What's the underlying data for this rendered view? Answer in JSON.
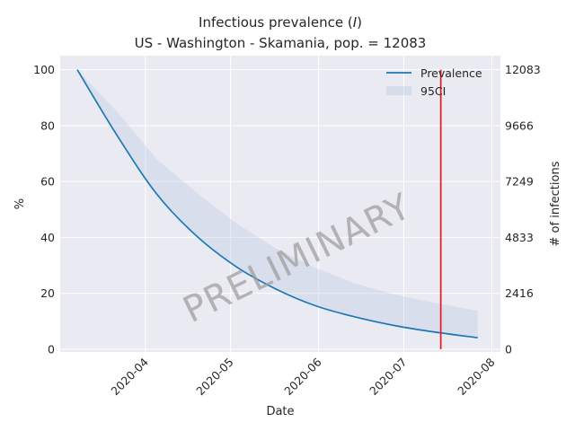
{
  "chart_data": {
    "type": "line",
    "title_line1": "Infectious prevalence (",
    "title_symbol": "I",
    "title_line1_end": ")",
    "title_line2": "US - Washington - Skamania, pop. = 12083",
    "xlabel": "Date",
    "ylabel_left": "%",
    "ylabel_right": "# of infections",
    "x_range": [
      "2020-03-02",
      "2020-08-04"
    ],
    "x_ticks": [
      "2020-04",
      "2020-05",
      "2020-06",
      "2020-07",
      "2020-08"
    ],
    "x_tick_dates": [
      "2020-04-01",
      "2020-05-01",
      "2020-06-01",
      "2020-07-01",
      "2020-08-01"
    ],
    "ylim_left": [
      -1,
      105
    ],
    "y_ticks_left": [
      "0",
      "20",
      "40",
      "60",
      "80",
      "100"
    ],
    "y_ticks_left_values": [
      0,
      20,
      40,
      60,
      80,
      100
    ],
    "ylim_right_total": 12083,
    "y_ticks_right": [
      "0",
      "2416",
      "4833",
      "7249",
      "9666",
      "12083"
    ],
    "y_ticks_right_values": [
      0,
      2416,
      4833,
      7249,
      9666,
      12083
    ],
    "series": [
      {
        "name": "Prevalence",
        "color": "#1f77b4",
        "x": [
          "2020-03-08",
          "2020-03-22",
          "2020-04-05",
          "2020-04-19",
          "2020-05-03",
          "2020-05-17",
          "2020-05-31",
          "2020-06-14",
          "2020-06-28",
          "2020-07-12",
          "2020-07-27"
        ],
        "values": [
          100,
          76.5,
          55.5,
          40.5,
          29.5,
          21.5,
          15.5,
          11.5,
          8.4,
          6.1,
          4.1
        ]
      }
    ],
    "ci_band": {
      "name": "95CI",
      "color": "#b0c4de",
      "x": [
        "2020-03-08",
        "2020-03-22",
        "2020-04-05",
        "2020-04-19",
        "2020-05-03",
        "2020-05-17",
        "2020-05-31",
        "2020-06-14",
        "2020-06-28",
        "2020-07-12",
        "2020-07-27"
      ],
      "lower": [
        100,
        76.5,
        55.5,
        40.5,
        29.5,
        21.5,
        15.5,
        11.5,
        8.4,
        6.1,
        4.1
      ],
      "upper": [
        100,
        85,
        68,
        56,
        45,
        36,
        29,
        23.5,
        19.5,
        16.5,
        13.8
      ]
    },
    "vline": {
      "date": "2020-07-14",
      "color": "#e31a1c",
      "y_range": [
        0,
        100
      ]
    },
    "legend_position": "top-right",
    "watermark": "PRELIMINARY",
    "grid": true,
    "background": "#eaeaf2"
  }
}
